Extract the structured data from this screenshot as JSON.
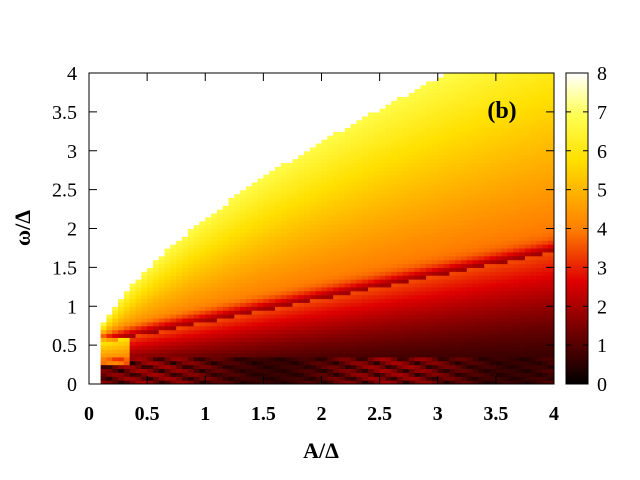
{
  "chart_data": {
    "type": "heatmap",
    "panel_label": "(b)",
    "xlabel": "A/Δ",
    "ylabel": "ω/Δ",
    "xlim": [
      0,
      4
    ],
    "ylim": [
      0,
      4
    ],
    "x_ticks": [
      {
        "value": 0,
        "label": "0"
      },
      {
        "value": 0.5,
        "label": "0.5"
      },
      {
        "value": 1,
        "label": "1"
      },
      {
        "value": 1.5,
        "label": "1.5"
      },
      {
        "value": 2,
        "label": "2"
      },
      {
        "value": 2.5,
        "label": "2.5"
      },
      {
        "value": 3,
        "label": "3"
      },
      {
        "value": 3.5,
        "label": "3.5"
      },
      {
        "value": 4,
        "label": "4"
      }
    ],
    "y_ticks": [
      {
        "value": 0,
        "label": "0"
      },
      {
        "value": 0.5,
        "label": "0.5"
      },
      {
        "value": 1,
        "label": "1"
      },
      {
        "value": 1.5,
        "label": "1.5"
      },
      {
        "value": 2,
        "label": "2"
      },
      {
        "value": 2.5,
        "label": "2.5"
      },
      {
        "value": 3,
        "label": "3"
      },
      {
        "value": 3.5,
        "label": "3.5"
      },
      {
        "value": 4,
        "label": "4"
      }
    ],
    "colorbar": {
      "range": [
        0,
        8
      ],
      "ticks": [
        {
          "value": 0,
          "label": "0"
        },
        {
          "value": 1,
          "label": "1"
        },
        {
          "value": 2,
          "label": "2"
        },
        {
          "value": 3,
          "label": "3"
        },
        {
          "value": 4,
          "label": "4"
        },
        {
          "value": 5,
          "label": "5"
        },
        {
          "value": 6,
          "label": "6"
        },
        {
          "value": 7,
          "label": "7"
        },
        {
          "value": 8,
          "label": "8"
        }
      ],
      "colormap": "black-red-yellow-white"
    },
    "grid": false,
    "legend": "none"
  }
}
